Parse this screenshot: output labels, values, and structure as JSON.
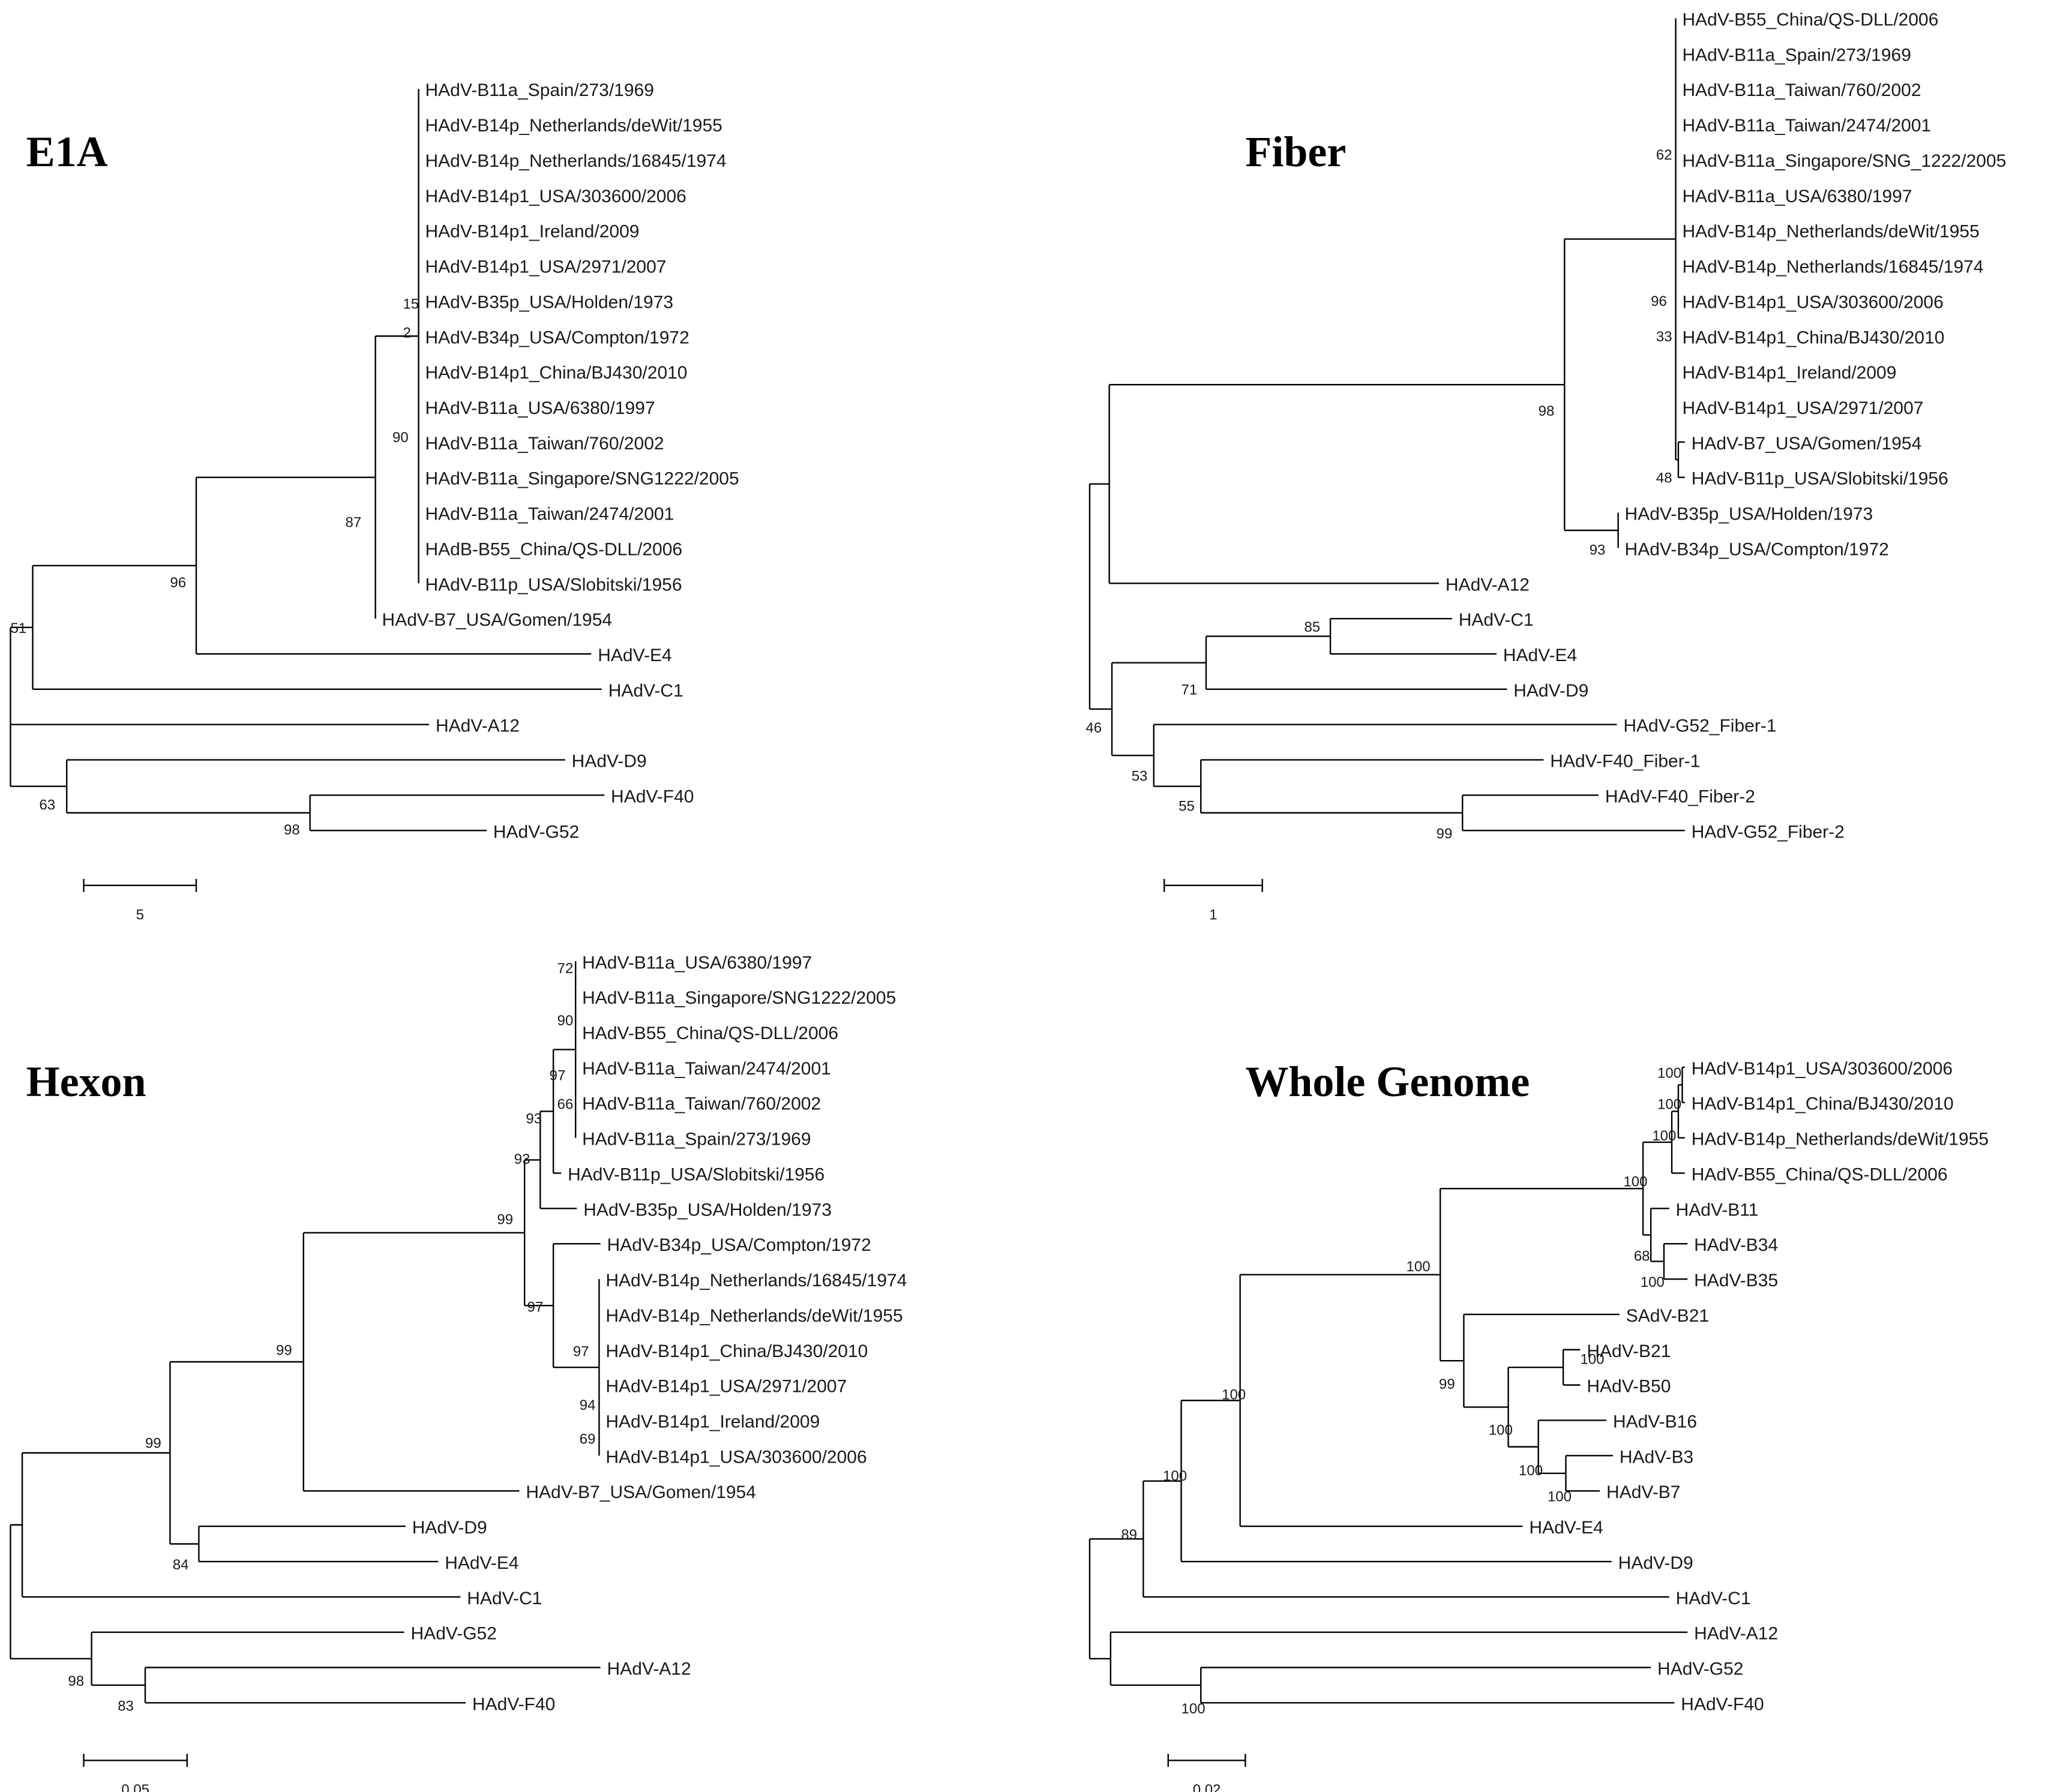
{
  "panels": [
    {
      "title": "E1A",
      "scale": "5",
      "leaves": [
        "HAdV-B11a_Spain/273/1969",
        "HAdV-B14p_Netherlands/deWit/1955",
        "HAdV-B14p_Netherlands/16845/1974",
        "HAdV-B14p1_USA/303600/2006",
        "HAdV-B14p1_Ireland/2009",
        "HAdV-B14p1_USA/2971/2007",
        "HAdV-B35p_USA/Holden/1973",
        "HAdV-B34p_USA/Compton/1972",
        "HAdV-B14p1_China/BJ430/2010",
        "HAdV-B11a_USA/6380/1997",
        "HAdV-B11a_Taiwan/760/2002",
        "HAdV-B11a_Singapore/SNG1222/2005",
        "HAdV-B11a_Taiwan/2474/2001",
        "HAdB-B55_China/QS-DLL/2006",
        "HAdV-B11p_USA/Slobitski/1956",
        "HAdV-B7_USA/Gomen/1954",
        "HAdV-E4",
        "HAdV-C1",
        "HAdV-A12",
        "HAdV-D9",
        "HAdV-F40",
        "HAdV-G52"
      ],
      "bootstrap": [
        "15",
        "2",
        "90",
        "87",
        "96",
        "51",
        "63",
        "98"
      ]
    },
    {
      "title": "Fiber",
      "scale": "1",
      "leaves": [
        "HAdV-B55_China/QS-DLL/2006",
        "HAdV-B11a_Spain/273/1969",
        "HAdV-B11a_Taiwan/760/2002",
        "HAdV-B11a_Taiwan/2474/2001",
        "HAdV-B11a_Singapore/SNG_1222/2005",
        "HAdV-B11a_USA/6380/1997",
        "HAdV-B14p_Netherlands/deWit/1955",
        "HAdV-B14p_Netherlands/16845/1974",
        "HAdV-B14p1_USA/303600/2006",
        "HAdV-B14p1_China/BJ430/2010",
        "HAdV-B14p1_Ireland/2009",
        "HAdV-B14p1_USA/2971/2007",
        "HAdV-B7_USA/Gomen/1954",
        "HAdV-B11p_USA/Slobitski/1956",
        "HAdV-B35p_USA/Holden/1973",
        "HAdV-B34p_USA/Compton/1972",
        "HAdV-A12",
        "HAdV-C1",
        "HAdV-E4",
        "HAdV-D9",
        "HAdV-G52_Fiber-1",
        "HAdV-F40_Fiber-1",
        "HAdV-F40_Fiber-2",
        "HAdV-G52_Fiber-2"
      ],
      "bootstrap": [
        "62",
        "96",
        "33",
        "48",
        "98",
        "93",
        "85",
        "71",
        "46",
        "53",
        "55",
        "99"
      ]
    },
    {
      "title": "Hexon",
      "scale": "0.05",
      "leaves": [
        "HAdV-B11a_USA/6380/1997",
        "HAdV-B11a_Singapore/SNG1222/2005",
        "HAdV-B55_China/QS-DLL/2006",
        "HAdV-B11a_Taiwan/2474/2001",
        "HAdV-B11a_Taiwan/760/2002",
        "HAdV-B11a_Spain/273/1969",
        "HAdV-B11p_USA/Slobitski/1956",
        "HAdV-B35p_USA/Holden/1973",
        "HAdV-B34p_USA/Compton/1972",
        "HAdV-B14p_Netherlands/16845/1974",
        "HAdV-B14p_Netherlands/deWit/1955",
        "HAdV-B14p1_China/BJ430/2010",
        "HAdV-B14p1_USA/2971/2007",
        "HAdV-B14p1_Ireland/2009",
        "HAdV-B14p1_USA/303600/2006",
        "HAdV-B7_USA/Gomen/1954",
        "HAdV-D9",
        "HAdV-E4",
        "HAdV-C1",
        "HAdV-G52",
        "HAdV-A12",
        "HAdV-F40"
      ],
      "bootstrap": [
        "72",
        "90",
        "97",
        "66",
        "93",
        "93",
        "99",
        "97",
        "97",
        "94",
        "69",
        "99",
        "99",
        "84",
        "98",
        "83"
      ]
    },
    {
      "title": "Whole Genome",
      "scale": "0.02",
      "leaves": [
        "HAdV-B14p1_USA/303600/2006",
        "HAdV-B14p1_China/BJ430/2010",
        "HAdV-B14p_Netherlands/deWit/1955",
        "HAdV-B55_China/QS-DLL/2006",
        "HAdV-B11",
        "HAdV-B34",
        "HAdV-B35",
        "SAdV-B21",
        "HAdV-B21",
        "HAdV-B50",
        "HAdV-B16",
        "HAdV-B3",
        "HAdV-B7",
        "HAdV-E4",
        "HAdV-D9",
        "HAdV-C1",
        "HAdV-A12",
        "HAdV-G52",
        "HAdV-F40"
      ],
      "bootstrap": [
        "100",
        "100",
        "100",
        "100",
        "68",
        "100",
        "100",
        "100",
        "99",
        "100",
        "100",
        "100",
        "100",
        "100",
        "89",
        "100",
        "100"
      ]
    }
  ]
}
